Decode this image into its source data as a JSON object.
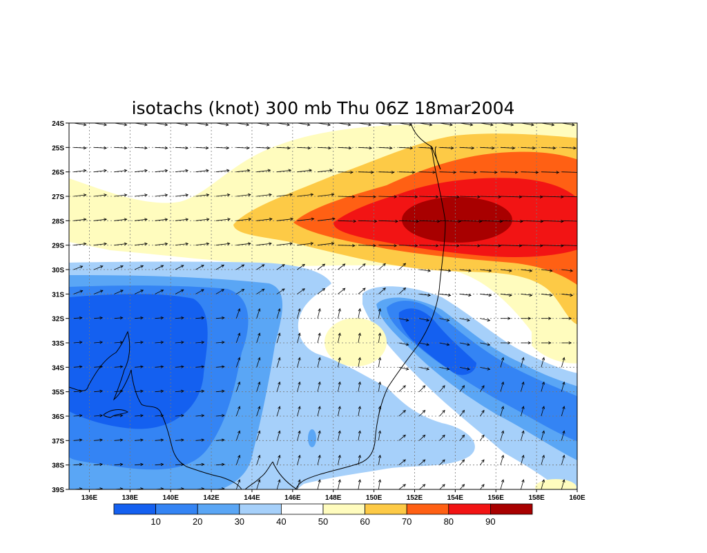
{
  "title": "isotachs (knot) 300 mb Thu 06Z 18mar2004",
  "lat_labels": [
    "24S",
    "25S",
    "26S",
    "27S",
    "28S",
    "29S",
    "30S",
    "31S",
    "32S",
    "33S",
    "34S",
    "35S",
    "36S",
    "37S",
    "38S",
    "39S"
  ],
  "lon_labels": [
    "136E",
    "138E",
    "140E",
    "142E",
    "144E",
    "146E",
    "148E",
    "150E",
    "152E",
    "154E",
    "156E",
    "158E",
    "160E"
  ],
  "colorbar": {
    "colors": [
      "#1460f0",
      "#3484f4",
      "#5aa6f5",
      "#a6d0fa",
      "#ffffff",
      "#fffcbe",
      "#fdca46",
      "#ff6014",
      "#f21414",
      "#a80000"
    ],
    "labels": [
      "10",
      "20",
      "30",
      "40",
      "50",
      "60",
      "70",
      "80",
      "90"
    ]
  },
  "palette": {
    "c0": "#1460f0",
    "c1": "#3484f4",
    "c2": "#5aa6f5",
    "c3": "#a6d0fa",
    "c5": "#fffcbe",
    "c6": "#fdca46",
    "c7": "#ff6014",
    "c8": "#f21414",
    "c9": "#a80000"
  }
}
